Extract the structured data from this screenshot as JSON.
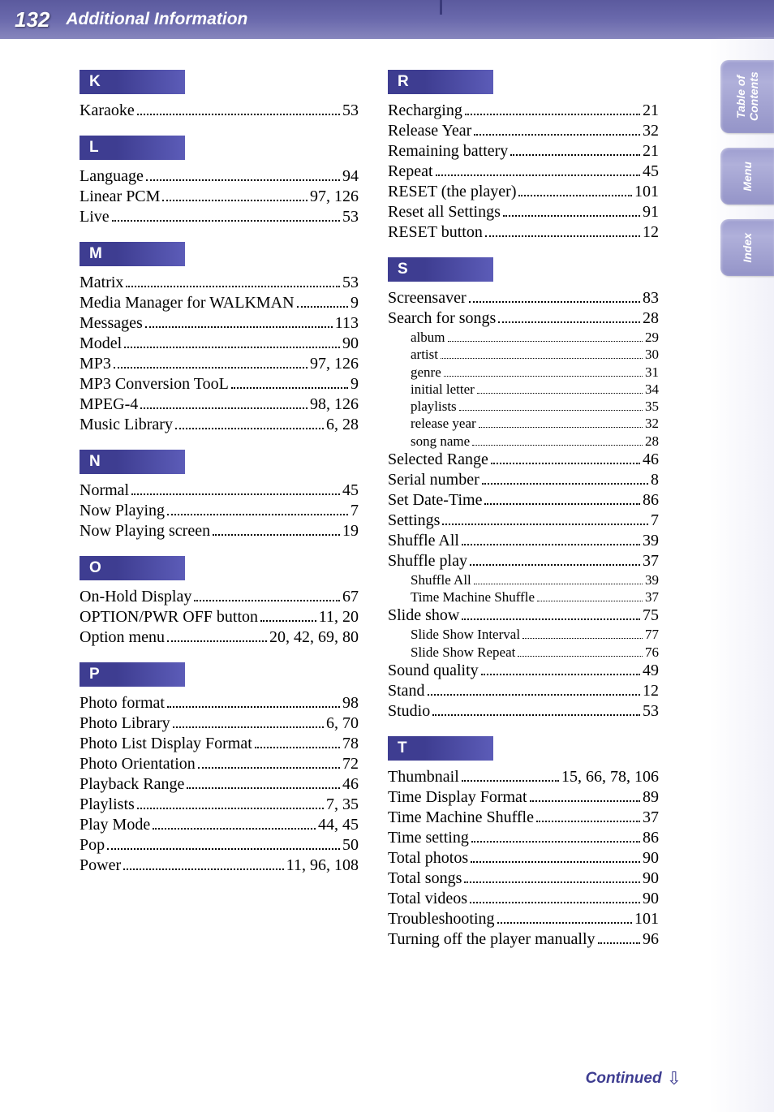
{
  "header": {
    "page_number": "132",
    "title": "Additional Information"
  },
  "side_tabs": {
    "toc": "Table of\nContents",
    "menu": "Menu",
    "index": "Index"
  },
  "footer": {
    "continued": "Continued"
  },
  "col_left": [
    {
      "heading": "K"
    },
    {
      "term": "Karaoke",
      "pg": "53"
    },
    {
      "heading": "L"
    },
    {
      "term": "Language",
      "pg": "94"
    },
    {
      "term": "Linear PCM",
      "pg": "97, 126"
    },
    {
      "term": "Live",
      "pg": "53"
    },
    {
      "heading": "M"
    },
    {
      "term": "Matrix",
      "pg": "53"
    },
    {
      "term": "Media Manager for WALKMAN",
      "pg": "9"
    },
    {
      "term": "Messages",
      "pg": "113"
    },
    {
      "term": "Model",
      "pg": "90"
    },
    {
      "term": "MP3",
      "pg": "97, 126"
    },
    {
      "term": "MP3 Conversion TooL",
      "pg": "9"
    },
    {
      "term": "MPEG-4",
      "pg": "98, 126"
    },
    {
      "term": "Music Library",
      "pg": "6, 28"
    },
    {
      "heading": "N"
    },
    {
      "term": "Normal",
      "pg": "45"
    },
    {
      "term": "Now Playing",
      "pg": "7"
    },
    {
      "term": "Now Playing screen",
      "pg": "19"
    },
    {
      "heading": "O"
    },
    {
      "term": "On-Hold Display",
      "pg": "67"
    },
    {
      "term": "OPTION/PWR OFF button",
      "pg": "11, 20"
    },
    {
      "term": "Option menu",
      "pg": "20, 42, 69, 80"
    },
    {
      "heading": "P"
    },
    {
      "term": "Photo format",
      "pg": "98"
    },
    {
      "term": "Photo Library",
      "pg": "6, 70"
    },
    {
      "term": "Photo List Display Format",
      "pg": "78"
    },
    {
      "term": "Photo Orientation",
      "pg": "72"
    },
    {
      "term": "Playback Range",
      "pg": "46"
    },
    {
      "term": "Playlists",
      "pg": "7, 35"
    },
    {
      "term": "Play Mode",
      "pg": "44, 45"
    },
    {
      "term": "Pop",
      "pg": "50"
    },
    {
      "term": "Power",
      "pg": "11, 96, 108"
    }
  ],
  "col_right": [
    {
      "heading": "R"
    },
    {
      "term": "Recharging",
      "pg": "21"
    },
    {
      "term": "Release Year",
      "pg": "32"
    },
    {
      "term": "Remaining battery",
      "pg": "21"
    },
    {
      "term": "Repeat",
      "pg": "45"
    },
    {
      "term": "RESET (the player)",
      "pg": "101"
    },
    {
      "term": "Reset all Settings",
      "pg": "91"
    },
    {
      "term": "RESET button",
      "pg": "12"
    },
    {
      "heading": "S"
    },
    {
      "term": "Screensaver",
      "pg": "83"
    },
    {
      "term": "Search for songs",
      "pg": "28"
    },
    {
      "term": "album",
      "pg": "29",
      "sub": true
    },
    {
      "term": "artist",
      "pg": "30",
      "sub": true
    },
    {
      "term": "genre",
      "pg": "31",
      "sub": true
    },
    {
      "term": "initial letter",
      "pg": "34",
      "sub": true
    },
    {
      "term": "playlists",
      "pg": "35",
      "sub": true
    },
    {
      "term": "release year",
      "pg": "32",
      "sub": true
    },
    {
      "term": "song name",
      "pg": "28",
      "sub": true
    },
    {
      "term": "Selected Range",
      "pg": "46"
    },
    {
      "term": "Serial number",
      "pg": "8"
    },
    {
      "term": "Set Date-Time",
      "pg": "86"
    },
    {
      "term": "Settings",
      "pg": "7"
    },
    {
      "term": "Shuffle All",
      "pg": "39"
    },
    {
      "term": "Shuffle play",
      "pg": "37"
    },
    {
      "term": "Shuffle All",
      "pg": "39",
      "sub": true
    },
    {
      "term": "Time Machine Shuffle",
      "pg": "37",
      "sub": true
    },
    {
      "term": "Slide show",
      "pg": "75"
    },
    {
      "term": "Slide Show Interval",
      "pg": "77",
      "sub": true
    },
    {
      "term": "Slide Show Repeat",
      "pg": "76",
      "sub": true
    },
    {
      "term": "Sound quality",
      "pg": "49"
    },
    {
      "term": "Stand",
      "pg": "12"
    },
    {
      "term": "Studio",
      "pg": "53"
    },
    {
      "heading": "T"
    },
    {
      "term": "Thumbnail",
      "pg": "15, 66, 78, 106"
    },
    {
      "term": "Time Display Format",
      "pg": "89"
    },
    {
      "term": "Time Machine Shuffle",
      "pg": "37"
    },
    {
      "term": "Time setting",
      "pg": "86"
    },
    {
      "term": "Total photos",
      "pg": "90"
    },
    {
      "term": "Total songs",
      "pg": "90"
    },
    {
      "term": "Total videos",
      "pg": "90"
    },
    {
      "term": "Troubleshooting",
      "pg": "101"
    },
    {
      "term": "Turning off the player manually",
      "pg": "96"
    }
  ]
}
